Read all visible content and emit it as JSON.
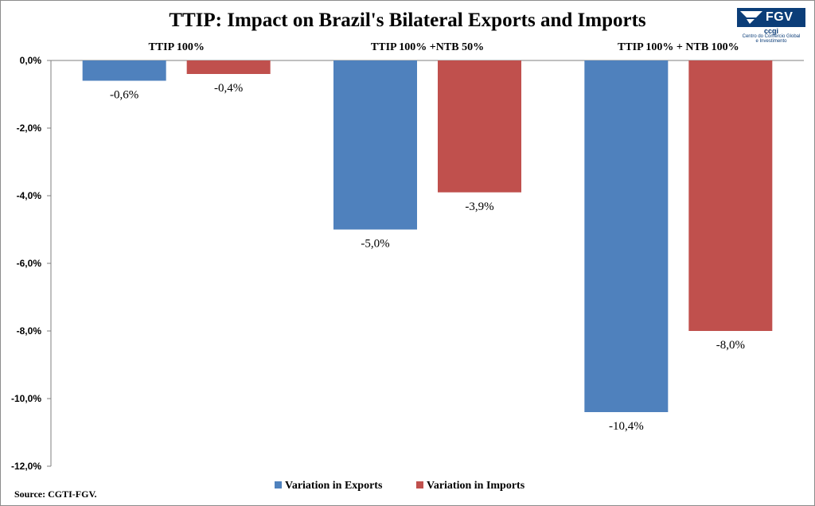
{
  "chart_data": {
    "type": "bar",
    "title": "TTIP: Impact on Brazil's Bilateral Exports and Imports",
    "categories": [
      "TTIP 100%",
      "TTIP 100% +NTB 50%",
      "TTIP 100% + NTB 100%"
    ],
    "series": [
      {
        "name": "Variation in Exports",
        "values": [
          -0.6,
          -5.0,
          -10.4
        ],
        "labels": [
          "-0,6%",
          "-5,0%",
          "-10,4%"
        ],
        "color": "#4f81bd"
      },
      {
        "name": "Variation in Imports",
        "values": [
          -0.4,
          -3.9,
          -8.0
        ],
        "labels": [
          "-0,4%",
          "-3,9%",
          "-8,0%"
        ],
        "color": "#c0504d"
      }
    ],
    "yticks": [
      {
        "value": 0,
        "label": "0,0%"
      },
      {
        "value": -2,
        "label": "-2,0%"
      },
      {
        "value": -4,
        "label": "-4,0%"
      },
      {
        "value": -6,
        "label": "-6,0%"
      },
      {
        "value": -8,
        "label": "-8,0%"
      },
      {
        "value": -10,
        "label": "-10,0%"
      },
      {
        "value": -12,
        "label": "-12,0%"
      }
    ],
    "ylim": [
      -12,
      0
    ],
    "xlabel": "",
    "ylabel": "",
    "grid": false,
    "legend_position": "bottom"
  },
  "source": "Source: CGTI-FGV.",
  "logo": {
    "name": "FGV",
    "sub": "ccgi",
    "caption": [
      "Centro do Comércio Global",
      "e Investimento"
    ]
  },
  "colors": {
    "axis": "#7f7f7f",
    "frame": "#8c8c8c",
    "brand": "#0b3d78"
  }
}
